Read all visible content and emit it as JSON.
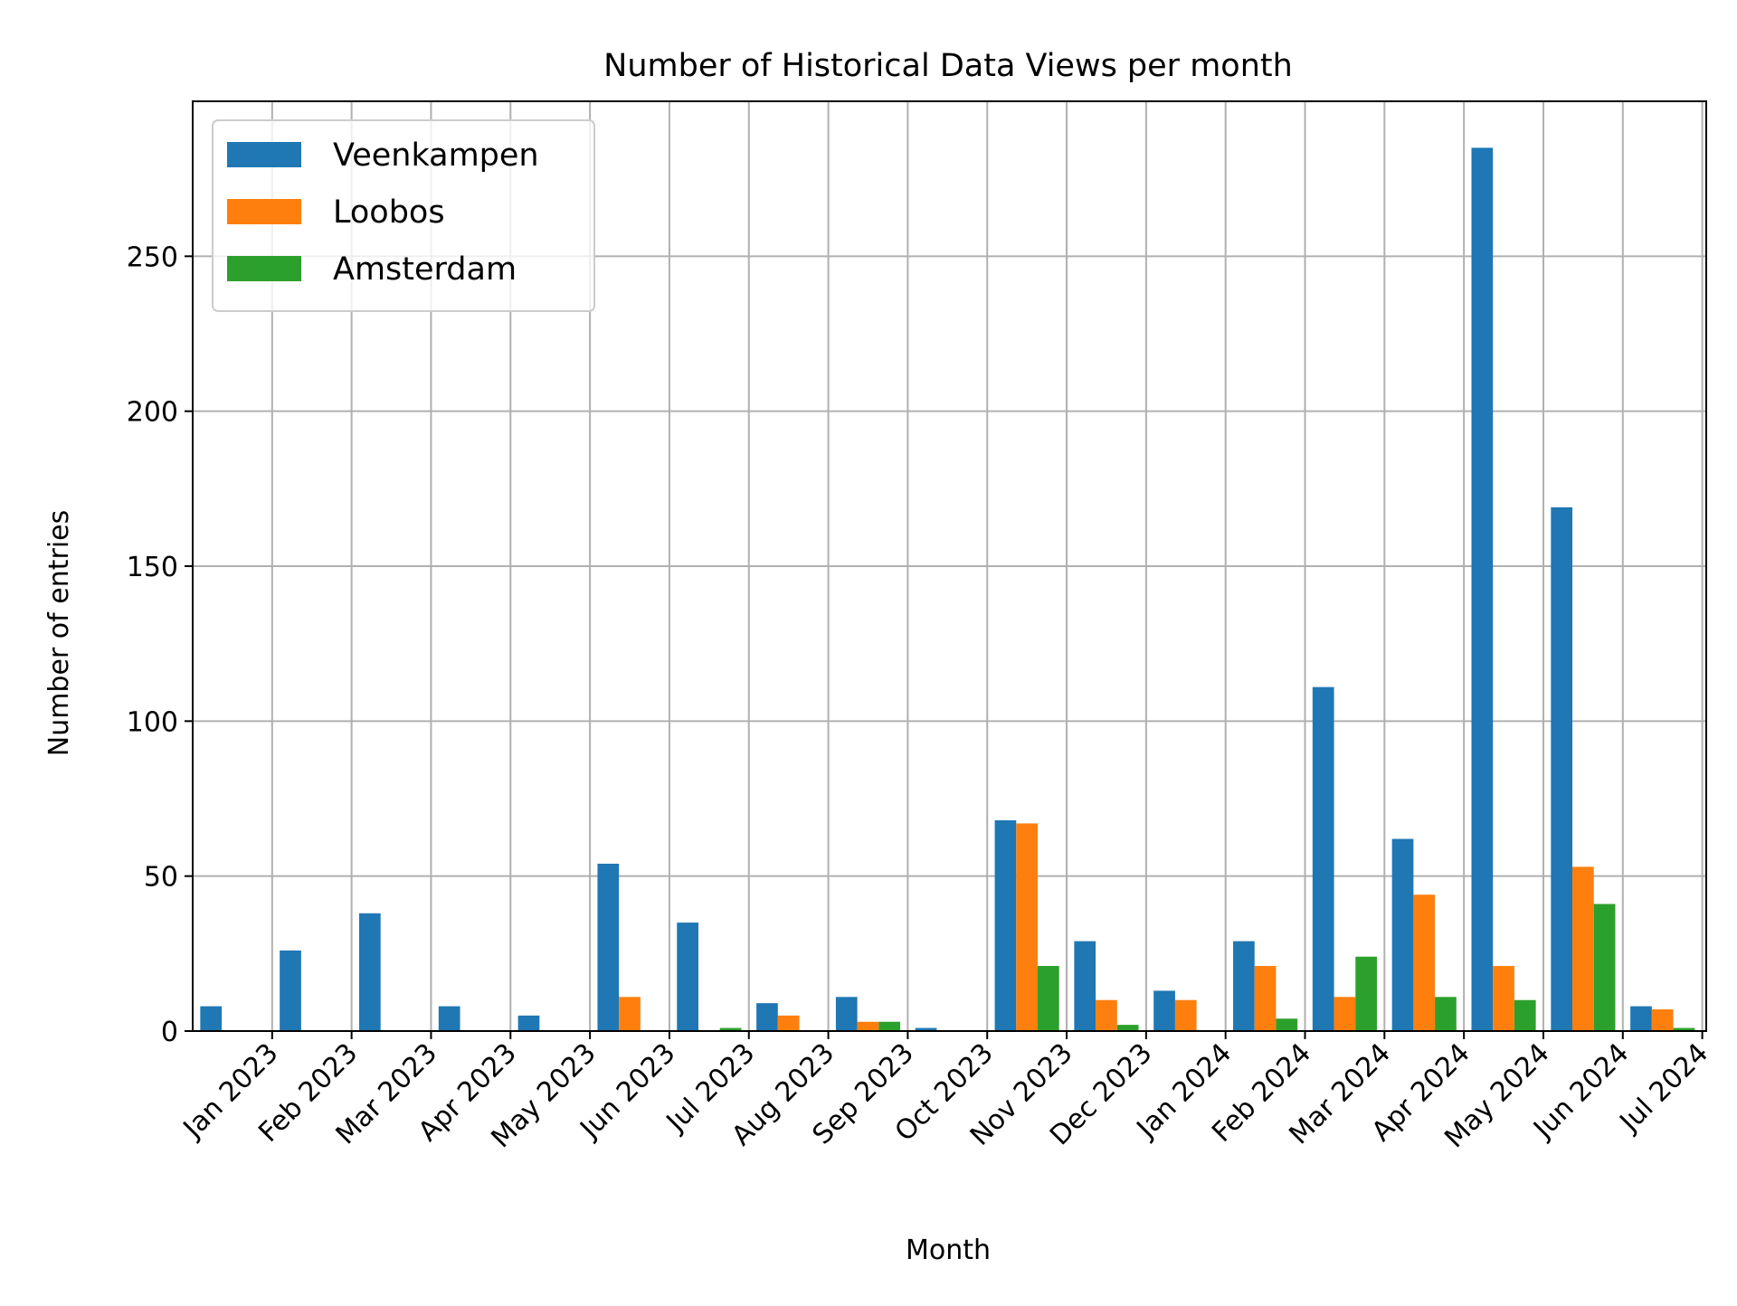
{
  "chart_data": {
    "type": "bar",
    "title": "Number of Historical Data Views per month",
    "xlabel": "Month",
    "ylabel": "Number of entries",
    "ylim": [
      0,
      300
    ],
    "yticks": [
      0,
      50,
      100,
      150,
      200,
      250
    ],
    "grid": true,
    "legend_position": "top-left",
    "categories": [
      "Jan 2023",
      "Feb 2023",
      "Mar 2023",
      "Apr 2023",
      "May 2023",
      "Jun 2023",
      "Jul 2023",
      "Aug 2023",
      "Sep 2023",
      "Oct 2023",
      "Nov 2023",
      "Dec 2023",
      "Jan 2024",
      "Feb 2024",
      "Mar 2024",
      "Apr 2024",
      "May 2024",
      "Jun 2024",
      "Jul 2024"
    ],
    "series": [
      {
        "name": "Veenkampen",
        "color": "#1f77b4",
        "values": [
          8,
          26,
          38,
          8,
          5,
          54,
          35,
          9,
          11,
          1,
          68,
          29,
          13,
          29,
          111,
          62,
          285,
          169,
          8
        ]
      },
      {
        "name": "Loobos",
        "color": "#ff7f0e",
        "values": [
          0,
          0,
          0,
          0,
          0,
          11,
          0,
          5,
          3,
          0,
          67,
          10,
          10,
          21,
          11,
          44,
          21,
          53,
          7
        ]
      },
      {
        "name": "Amsterdam",
        "color": "#2ca02c",
        "values": [
          0,
          0,
          0,
          0,
          0,
          0,
          1,
          0,
          3,
          0,
          21,
          2,
          0,
          4,
          24,
          11,
          10,
          41,
          1
        ]
      }
    ]
  }
}
